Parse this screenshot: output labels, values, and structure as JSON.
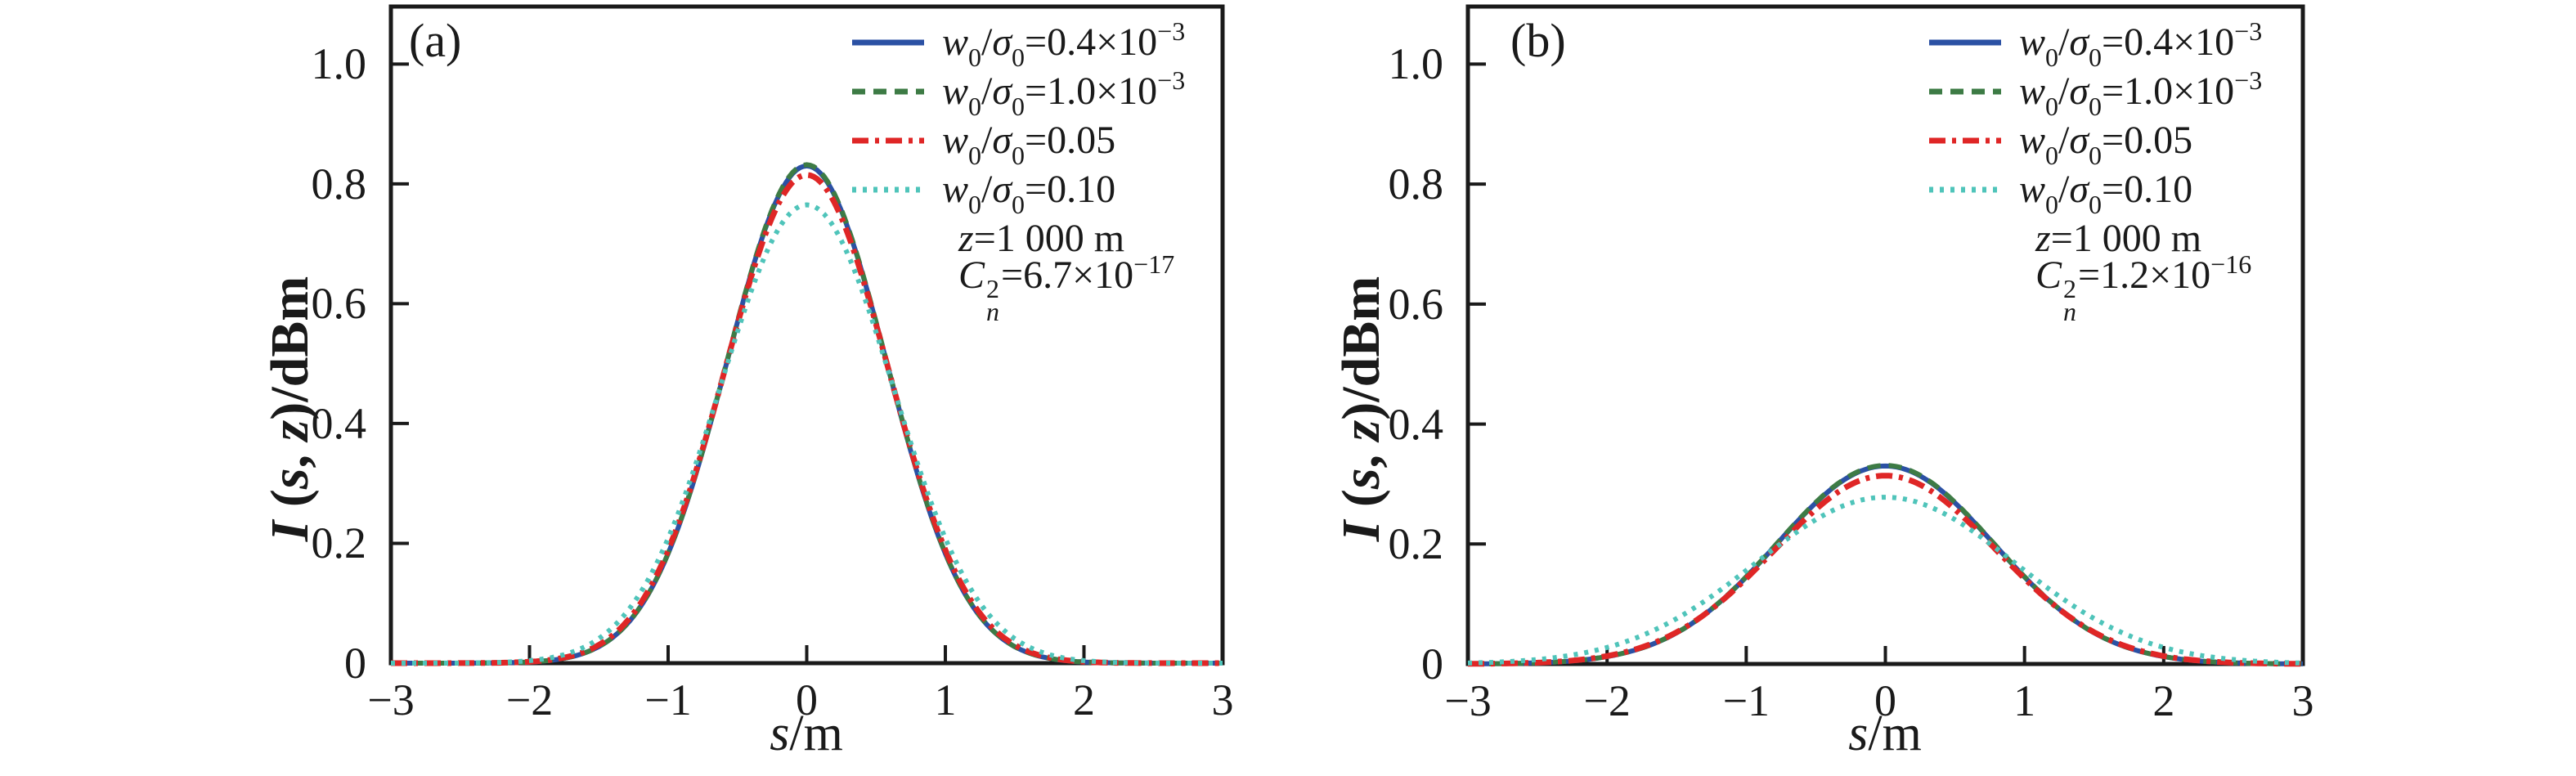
{
  "figure": {
    "background": "#ffffff",
    "axis_color": "#1a1a1a",
    "text_color": "#1a1a1a"
  },
  "x_axis": {
    "label_var": "s",
    "label_rest": "/m",
    "tick_labels": [
      "−3",
      "−2",
      "−1",
      "0",
      "1",
      "2",
      "3"
    ]
  },
  "y_axis": {
    "label_var": "I",
    "label_p1": " (",
    "label_s": "s",
    "label_comma": ", ",
    "label_z": "z",
    "label_p2": ")/dBm",
    "tick_labels": [
      "0",
      "0.2",
      "0.4",
      "0.6",
      "0.8",
      "1.0"
    ]
  },
  "legend": {
    "items": [
      {
        "var_w": "w",
        "sub_w": "0",
        "slash": "/",
        "var_sigma": "σ",
        "sub_sigma": "0",
        "value": "=0.4×10",
        "exp": "−3",
        "color": "#2b51a4",
        "dash": "",
        "width": 7,
        "style": "solid"
      },
      {
        "var_w": "w",
        "sub_w": "0",
        "slash": "/",
        "var_sigma": "σ",
        "sub_sigma": "0",
        "value": "=1.0×10",
        "exp": "−3",
        "color": "#3d7b45",
        "dash": "16 10",
        "width": 7,
        "style": "dashed"
      },
      {
        "var_w": "w",
        "sub_w": "0",
        "slash": "/",
        "var_sigma": "σ",
        "sub_sigma": "0",
        "value": "=0.05",
        "exp": "",
        "color": "#df2626",
        "dash": "20 8 5 8",
        "width": 7,
        "style": "dash-dot"
      },
      {
        "var_w": "w",
        "sub_w": "0",
        "slash": "/",
        "var_sigma": "σ",
        "sub_sigma": "0",
        "value": "=0.10",
        "exp": "",
        "color": "#4fc4ba",
        "dash": "5 8",
        "width": 7,
        "style": "dotted"
      }
    ]
  },
  "panels": [
    {
      "tag": "(a)",
      "ann": {
        "z_var": "z",
        "z_rest": "=1 000 m",
        "c_var": "C",
        "c_sup": "2",
        "c_sub": "n",
        "c_rest": "=6.7×10",
        "c_exp": "−17"
      }
    },
    {
      "tag": "(b)",
      "ann": {
        "z_var": "z",
        "z_rest": "=1 000 m",
        "c_var": "C",
        "c_sup": "2",
        "c_sub": "n",
        "c_rest": "=1.2×10",
        "c_exp": "−16"
      }
    }
  ],
  "chart_data": [
    {
      "type": "line",
      "panel": "(a)",
      "xlabel": "s/m",
      "ylabel": "I (s, z)/dBm",
      "xlim": [
        -3,
        3
      ],
      "ylim": [
        0,
        1.096
      ],
      "x_ticks": [
        -3,
        -2,
        -1,
        0,
        1,
        2,
        3
      ],
      "y_ticks": [
        0,
        0.2,
        0.4,
        0.6,
        0.8,
        1.0
      ],
      "grid": false,
      "legend_position": "upper right inside",
      "annotations": [
        "z=1 000 m",
        "Cn^2=6.7×10^-17"
      ],
      "curve_model": "gaussian y=peak*exp(-x^2/(2*sigma^2))",
      "sample_x": [
        -3,
        -2.5,
        -2,
        -1.5,
        -1,
        -0.5,
        0,
        0.5,
        1,
        1.5,
        2,
        2.5,
        3
      ],
      "series": [
        {
          "id": "ratio-0p0004",
          "name": "w0/σ0=0.4×10^-3",
          "color": "#2b51a4",
          "line_style": "solid",
          "dash": "",
          "stroke_width": 6,
          "peak": 0.83,
          "sigma": 0.575,
          "y": [
            0,
            0.0001,
            0.002,
            0.028,
            0.183,
            0.569,
            0.83,
            0.569,
            0.183,
            0.028,
            0.002,
            0.0001,
            0
          ]
        },
        {
          "id": "ratio-0p001",
          "name": "w0/σ0=1.0×10^-3",
          "color": "#3d7b45",
          "line_style": "dashed",
          "dash": "16 10",
          "stroke_width": 6,
          "peak": 0.832,
          "sigma": 0.575,
          "y": [
            0,
            0.0001,
            0.002,
            0.028,
            0.184,
            0.57,
            0.832,
            0.57,
            0.184,
            0.028,
            0.002,
            0.0001,
            0
          ]
        },
        {
          "id": "ratio-0p05",
          "name": "w0/σ0=0.05",
          "color": "#df2626",
          "line_style": "dash-dot",
          "dash": "20 8 5 8",
          "stroke_width": 7,
          "peak": 0.815,
          "sigma": 0.585,
          "y": [
            0,
            0.0001,
            0.002,
            0.03,
            0.189,
            0.566,
            0.815,
            0.566,
            0.189,
            0.03,
            0.002,
            0.0001,
            0
          ]
        },
        {
          "id": "ratio-0p10",
          "name": "w0/σ0=0.10",
          "color": "#4fc4ba",
          "line_style": "dotted",
          "dash": "5 8",
          "stroke_width": 6,
          "peak": 0.765,
          "sigma": 0.62,
          "y": [
            0,
            0.0002,
            0.004,
            0.041,
            0.208,
            0.553,
            0.765,
            0.553,
            0.208,
            0.041,
            0.004,
            0.0002,
            0
          ]
        }
      ]
    },
    {
      "type": "line",
      "panel": "(b)",
      "xlabel": "s/m",
      "ylabel": "I (s, z)/dBm",
      "xlim": [
        -3,
        3
      ],
      "ylim": [
        0,
        1.096
      ],
      "x_ticks": [
        -3,
        -2,
        -1,
        0,
        1,
        2,
        3
      ],
      "y_ticks": [
        0,
        0.2,
        0.4,
        0.6,
        0.8,
        1.0
      ],
      "grid": false,
      "legend_position": "upper right inside",
      "annotations": [
        "z=1 000 m",
        "Cn^2=1.2×10^-16"
      ],
      "curve_model": "gaussian y=peak*exp(-x^2/(2*sigma^2))",
      "sample_x": [
        -3,
        -2.5,
        -2,
        -1.5,
        -1,
        -0.5,
        0,
        0.5,
        1,
        1.5,
        2,
        2.5,
        3
      ],
      "series": [
        {
          "id": "ratio-0p0004",
          "name": "w0/σ0=0.4×10^-3",
          "color": "#2b51a4",
          "line_style": "solid",
          "dash": "",
          "stroke_width": 6,
          "peak": 0.33,
          "sigma": 0.78,
          "y": [
            0.0002,
            0.002,
            0.012,
            0.052,
            0.145,
            0.269,
            0.33,
            0.269,
            0.145,
            0.052,
            0.012,
            0.002,
            0.0002
          ]
        },
        {
          "id": "ratio-0p001",
          "name": "w0/σ0=1.0×10^-3",
          "color": "#3d7b45",
          "line_style": "dashed",
          "dash": "16 10",
          "stroke_width": 6,
          "peak": 0.331,
          "sigma": 0.78,
          "y": [
            0.0002,
            0.002,
            0.012,
            0.052,
            0.146,
            0.27,
            0.331,
            0.27,
            0.146,
            0.052,
            0.012,
            0.002,
            0.0002
          ]
        },
        {
          "id": "ratio-0p05",
          "name": "w0/σ0=0.05",
          "color": "#df2626",
          "line_style": "dash-dot",
          "dash": "20 8 5 8",
          "stroke_width": 7,
          "peak": 0.314,
          "sigma": 0.795,
          "y": [
            0.0002,
            0.002,
            0.013,
            0.052,
            0.141,
            0.258,
            0.314,
            0.258,
            0.141,
            0.052,
            0.013,
            0.002,
            0.0002
          ]
        },
        {
          "id": "ratio-0p10",
          "name": "w0/σ0=0.10",
          "color": "#4fc4ba",
          "line_style": "dotted",
          "dash": "5 8",
          "stroke_width": 6,
          "peak": 0.278,
          "sigma": 0.93,
          "y": [
            0.0015,
            0.0075,
            0.028,
            0.076,
            0.156,
            0.241,
            0.278,
            0.241,
            0.156,
            0.076,
            0.028,
            0.0075,
            0.0015
          ]
        }
      ]
    }
  ]
}
